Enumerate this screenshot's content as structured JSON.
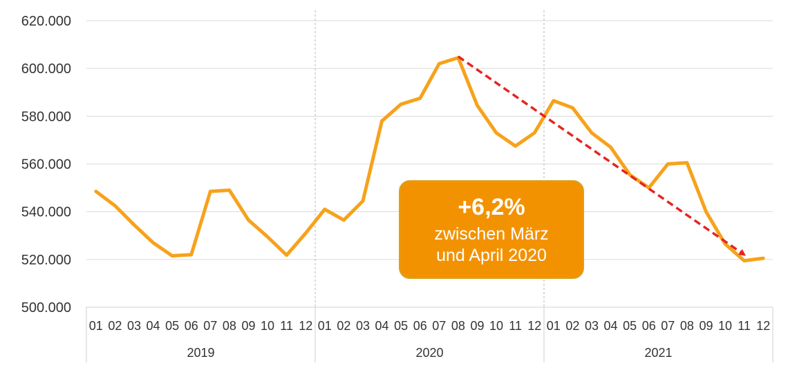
{
  "chart_data": {
    "type": "line",
    "title": "",
    "xlabel": "",
    "ylabel": "",
    "ylim": [
      500000,
      620000
    ],
    "yticks": [
      "500.000",
      "520.000",
      "540.000",
      "560.000",
      "580.000",
      "600.000",
      "620.000"
    ],
    "years": [
      "2019",
      "2020",
      "2021"
    ],
    "months": [
      "01",
      "02",
      "03",
      "04",
      "05",
      "06",
      "07",
      "08",
      "09",
      "10",
      "11",
      "12"
    ],
    "grid": true,
    "legend": "none",
    "series": [
      {
        "color": "#f7a21b",
        "values": [
          548500,
          542500,
          534500,
          527000,
          521500,
          522000,
          548500,
          549000,
          536500,
          529500,
          521800,
          531000,
          541000,
          536500,
          544500,
          578000,
          585000,
          587500,
          602000,
          604500,
          584500,
          573000,
          567500,
          573000,
          586500,
          583500,
          573000,
          567000,
          555500,
          550000,
          560000,
          560500,
          540000,
          526500,
          519500,
          520500
        ]
      }
    ],
    "trend_arrow": {
      "from": {
        "year": "2020",
        "month": "08",
        "value": 605000
      },
      "to": {
        "year": "2021",
        "month": "11",
        "value": 522000
      },
      "color": "#e52421"
    },
    "annotation": {
      "main": "+6,2%",
      "line1": "zwischen März",
      "line2": "und April 2020",
      "fill": "#f39200"
    }
  }
}
